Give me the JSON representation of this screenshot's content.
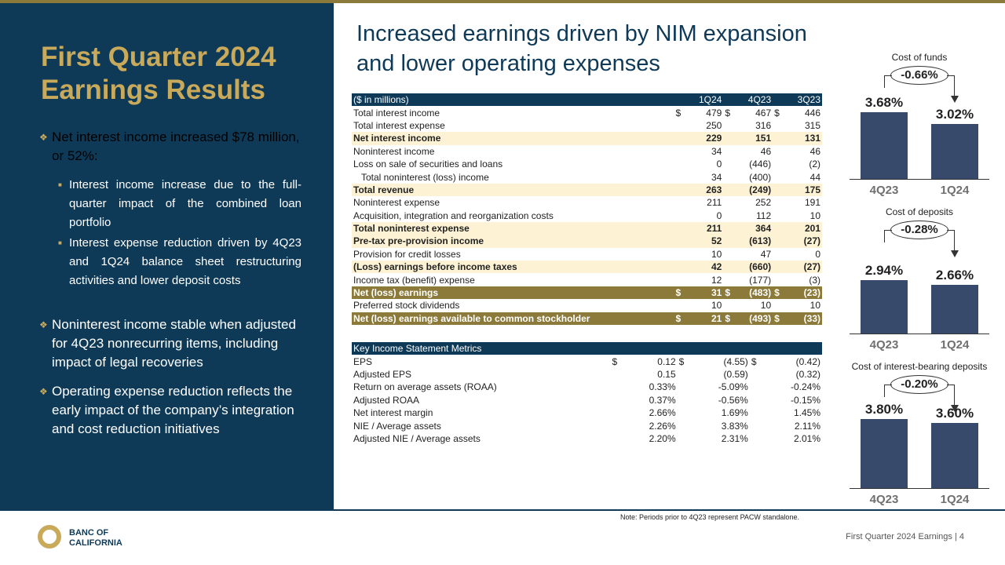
{
  "left": {
    "title_line1": "First Quarter 2024",
    "title_line2": "Earnings Results",
    "bullets": [
      {
        "text": "Net interest income increased $78 million, or 52%:",
        "subs": [
          "Interest income increase due to the full-quarter impact of the combined loan portfolio",
          "Interest expense reduction driven by 4Q23 and 1Q24 balance sheet restructuring activities and lower deposit costs"
        ]
      },
      {
        "text": "Noninterest income stable when adjusted for 4Q23 nonrecurring items, including impact of legal recoveries",
        "subs": []
      },
      {
        "text": "Operating expense reduction reflects the early impact of the company’s integration and cost reduction initiatives",
        "subs": []
      }
    ]
  },
  "main": {
    "title_line1": "Increased earnings driven by NIM expansion",
    "title_line2": "and lower operating expenses"
  },
  "income_table": {
    "header": [
      "($ in millions)",
      "1Q24",
      "4Q23",
      "3Q23"
    ],
    "rows": [
      {
        "label": "Total interest income",
        "v": [
          "479",
          "467",
          "446"
        ],
        "dollar": true,
        "style": ""
      },
      {
        "label": "Total interest expense",
        "v": [
          "250",
          "316",
          "315"
        ],
        "style": ""
      },
      {
        "label": "Net interest income",
        "v": [
          "229",
          "151",
          "131"
        ],
        "style": "hl"
      },
      {
        "label": "Noninterest income",
        "v": [
          "34",
          "46",
          "46"
        ],
        "style": ""
      },
      {
        "label": "Loss on sale of securities and loans",
        "v": [
          "0",
          "(446)",
          "(2)"
        ],
        "style": ""
      },
      {
        "label": "Total noninterest (loss) income",
        "v": [
          "34",
          "(400)",
          "44"
        ],
        "style": "ind"
      },
      {
        "label": "Total revenue",
        "v": [
          "263",
          "(249)",
          "175"
        ],
        "style": "hl"
      },
      {
        "label": "Noninterest expense",
        "v": [
          "211",
          "252",
          "191"
        ],
        "style": ""
      },
      {
        "label": "Acquisition, integration and reorganization costs",
        "v": [
          "0",
          "112",
          "10"
        ],
        "style": ""
      },
      {
        "label": "Total noninterest expense",
        "v": [
          "211",
          "364",
          "201"
        ],
        "style": "hl"
      },
      {
        "label": "Pre-tax pre-provision income",
        "v": [
          "52",
          "(613)",
          "(27)"
        ],
        "style": "hl"
      },
      {
        "label": "Provision for credit losses",
        "v": [
          "10",
          "47",
          "0"
        ],
        "style": ""
      },
      {
        "label": "(Loss) earnings before income taxes",
        "v": [
          "42",
          "(660)",
          "(27)"
        ],
        "style": "hl"
      },
      {
        "label": "Income tax (benefit) expense",
        "v": [
          "12",
          "(177)",
          "(3)"
        ],
        "style": ""
      },
      {
        "label": "Net (loss) earnings",
        "v": [
          "31",
          "(483)",
          "(23)"
        ],
        "dollar": true,
        "style": "gd"
      },
      {
        "label": "Preferred stock dividends",
        "v": [
          "10",
          "10",
          "10"
        ],
        "style": ""
      },
      {
        "label": "Net (loss) earnings available to common stockholder",
        "v": [
          "21",
          "(493)",
          "(33)"
        ],
        "dollar": true,
        "style": "gd"
      }
    ]
  },
  "metrics_table": {
    "header": [
      "Key Income Statement Metrics",
      "",
      "",
      ""
    ],
    "rows": [
      {
        "label": "EPS",
        "v": [
          "0.12",
          "(4.55)",
          "(0.42)"
        ],
        "dollar": true,
        "style": ""
      },
      {
        "label": "Adjusted EPS",
        "v": [
          "0.15",
          "(0.59)",
          "(0.32)"
        ],
        "style": ""
      },
      {
        "label": "Return on average assets (ROAA)",
        "v": [
          "0.33%",
          "-5.09%",
          "-0.24%"
        ],
        "style": ""
      },
      {
        "label": "Adjusted ROAA",
        "v": [
          "0.37%",
          "-0.56%",
          "-0.15%"
        ],
        "style": ""
      },
      {
        "label": "Net interest margin",
        "v": [
          "2.66%",
          "1.69%",
          "1.45%"
        ],
        "style": ""
      },
      {
        "label": "NIE / Average assets",
        "v": [
          "2.26%",
          "3.83%",
          "2.11%"
        ],
        "style": ""
      },
      {
        "label": "Adjusted NIE / Average assets",
        "v": [
          "2.20%",
          "2.31%",
          "2.01%"
        ],
        "style": ""
      }
    ]
  },
  "dollar_sign": "$",
  "charts": [
    {
      "title": "Cost of funds",
      "change": "-0.66%",
      "categories": [
        "4Q23",
        "1Q24"
      ],
      "values": [
        3.68,
        3.02
      ],
      "labels": [
        "3.68%",
        "3.02%"
      ]
    },
    {
      "title": "Cost of deposits",
      "change": "-0.28%",
      "categories": [
        "4Q23",
        "1Q24"
      ],
      "values": [
        2.94,
        2.66
      ],
      "labels": [
        "2.94%",
        "2.66%"
      ]
    },
    {
      "title": "Cost of interest-bearing deposits",
      "change": "-0.20%",
      "categories": [
        "4Q23",
        "1Q24"
      ],
      "values": [
        3.8,
        3.6
      ],
      "labels": [
        "3.80%",
        "3.60%"
      ]
    }
  ],
  "note": "Note: Periods prior to 4Q23 represent PACW standalone.",
  "footer": "First Quarter 2024 Earnings |  4",
  "logo": {
    "line1": "BANC OF",
    "line2": "CALIFORNIA"
  },
  "colors": {
    "navy": "#0e3a58",
    "gold": "#8c7a3a",
    "highlight": "#fdf3d4",
    "bar": "#374a6b"
  }
}
